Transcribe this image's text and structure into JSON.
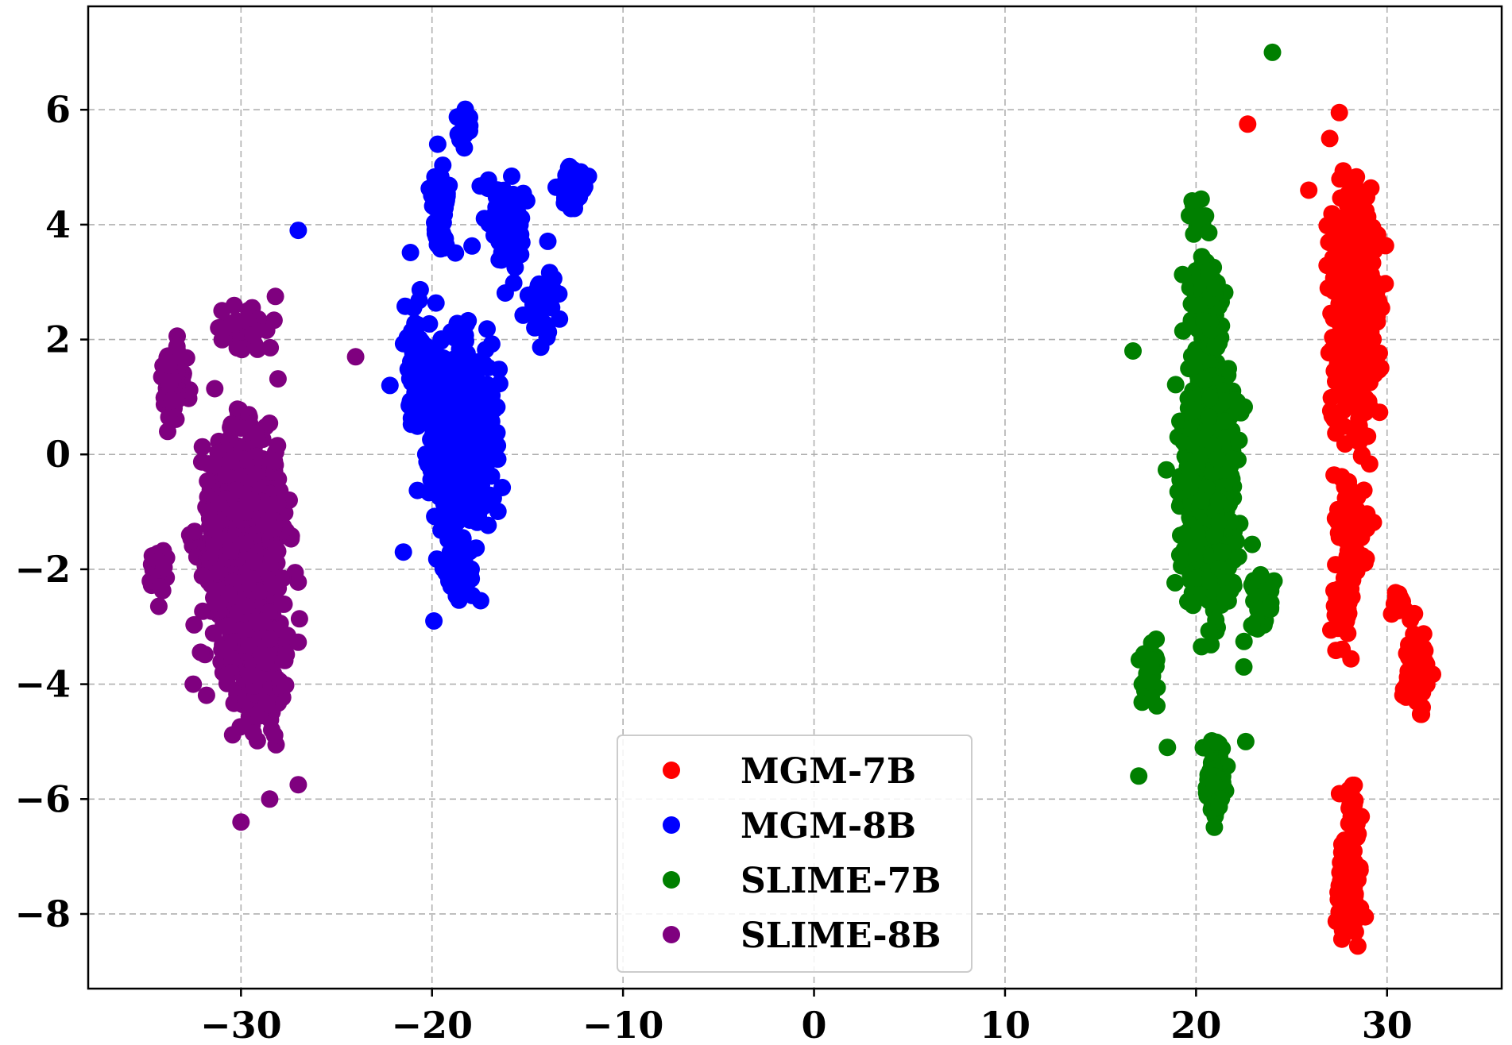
{
  "chart_data": {
    "type": "scatter",
    "title": "",
    "xlabel": "",
    "ylabel": "",
    "xlim": [
      -38,
      36
    ],
    "ylim": [
      -9.3,
      7.8
    ],
    "grid": true,
    "legend_position": "bottom-center",
    "x_ticks": [
      -30,
      -20,
      -10,
      0,
      10,
      20,
      30
    ],
    "x_tick_labels": [
      "−30",
      "−20",
      "−10",
      "0",
      "10",
      "20",
      "30"
    ],
    "y_ticks": [
      6,
      4,
      2,
      0,
      -2,
      -4,
      -6,
      -8
    ],
    "y_tick_labels": [
      "6",
      "4",
      "2",
      "0",
      "−2",
      "−4",
      "−6",
      "−8"
    ],
    "series": [
      {
        "name": "MGM-7B",
        "color": "#ff0000",
        "blobs": [
          {
            "cx": 28.3,
            "cy": 2.5,
            "sx": 1.0,
            "sy": 1.6,
            "n": 700
          },
          {
            "cx": 28.0,
            "cy": -1.5,
            "sx": 0.8,
            "sy": 1.2,
            "n": 80
          },
          {
            "cx": 27.6,
            "cy": -2.8,
            "sx": 0.4,
            "sy": 0.6,
            "n": 40
          },
          {
            "cx": 31.5,
            "cy": -3.8,
            "sx": 0.5,
            "sy": 0.6,
            "n": 110
          },
          {
            "cx": 30.6,
            "cy": -2.6,
            "sx": 0.3,
            "sy": 0.3,
            "n": 25
          },
          {
            "cx": 28.0,
            "cy": -7.6,
            "sx": 0.5,
            "sy": 0.6,
            "n": 150
          },
          {
            "cx": 28.2,
            "cy": -6.2,
            "sx": 0.4,
            "sy": 0.5,
            "n": 20
          }
        ],
        "extras": [
          [
            22.7,
            5.75
          ],
          [
            27.5,
            5.95
          ],
          [
            25.9,
            4.6
          ],
          [
            27.0,
            5.5
          ]
        ]
      },
      {
        "name": "MGM-8B",
        "color": "#0000ff",
        "blobs": [
          {
            "cx": -18.5,
            "cy": 0.3,
            "sx": 1.5,
            "sy": 1.3,
            "n": 650
          },
          {
            "cx": -20.8,
            "cy": 1.6,
            "sx": 0.5,
            "sy": 1.0,
            "n": 80
          },
          {
            "cx": -18.6,
            "cy": -2.0,
            "sx": 0.8,
            "sy": 0.5,
            "n": 80
          },
          {
            "cx": -19.5,
            "cy": 4.2,
            "sx": 0.5,
            "sy": 0.8,
            "n": 60
          },
          {
            "cx": -18.3,
            "cy": 5.7,
            "sx": 0.3,
            "sy": 0.3,
            "n": 20
          },
          {
            "cx": -16.0,
            "cy": 4.0,
            "sx": 1.0,
            "sy": 0.7,
            "n": 80
          },
          {
            "cx": -12.5,
            "cy": 4.6,
            "sx": 0.6,
            "sy": 0.3,
            "n": 60
          },
          {
            "cx": -14.2,
            "cy": 2.6,
            "sx": 0.7,
            "sy": 0.6,
            "n": 40
          }
        ],
        "extras": [
          [
            -27.0,
            3.9
          ],
          [
            -22.2,
            1.2
          ],
          [
            -21.5,
            -1.7
          ],
          [
            -19.9,
            -2.9
          ],
          [
            -19.7,
            5.4
          ]
        ]
      },
      {
        "name": "SLIME-7B",
        "color": "#007f00",
        "blobs": [
          {
            "cx": 20.7,
            "cy": -0.3,
            "sx": 1.2,
            "sy": 1.8,
            "n": 750
          },
          {
            "cx": 20.5,
            "cy": 2.6,
            "sx": 0.8,
            "sy": 0.6,
            "n": 80
          },
          {
            "cx": 21.0,
            "cy": -5.6,
            "sx": 0.4,
            "sy": 0.6,
            "n": 110
          },
          {
            "cx": 17.6,
            "cy": -3.9,
            "sx": 0.4,
            "sy": 0.5,
            "n": 30
          },
          {
            "cx": 20.2,
            "cy": 4.1,
            "sx": 0.6,
            "sy": 0.3,
            "n": 15
          },
          {
            "cx": 23.5,
            "cy": -2.6,
            "sx": 0.6,
            "sy": 0.7,
            "n": 30
          }
        ],
        "extras": [
          [
            24.0,
            7.0
          ],
          [
            16.7,
            1.8
          ],
          [
            17.0,
            -5.6
          ],
          [
            18.5,
            -5.1
          ],
          [
            22.6,
            -5.0
          ],
          [
            22.5,
            -3.7
          ]
        ]
      },
      {
        "name": "SLIME-8B",
        "color": "#7f007f",
        "blobs": [
          {
            "cx": -29.8,
            "cy": -1.6,
            "sx": 1.9,
            "sy": 1.7,
            "n": 850
          },
          {
            "cx": -29.0,
            "cy": -3.8,
            "sx": 1.2,
            "sy": 1.0,
            "n": 120
          },
          {
            "cx": -33.5,
            "cy": 1.3,
            "sx": 0.5,
            "sy": 0.7,
            "n": 60
          },
          {
            "cx": -34.3,
            "cy": -2.0,
            "sx": 0.5,
            "sy": 0.4,
            "n": 40
          },
          {
            "cx": -29.8,
            "cy": 2.1,
            "sx": 1.2,
            "sy": 0.4,
            "n": 40
          }
        ],
        "extras": [
          [
            -24.0,
            1.7
          ],
          [
            -30.0,
            -6.4
          ],
          [
            -27.0,
            -5.75
          ],
          [
            -32.5,
            -4.0
          ],
          [
            -28.5,
            -6.0
          ],
          [
            -28.2,
            2.75
          ]
        ]
      }
    ]
  }
}
